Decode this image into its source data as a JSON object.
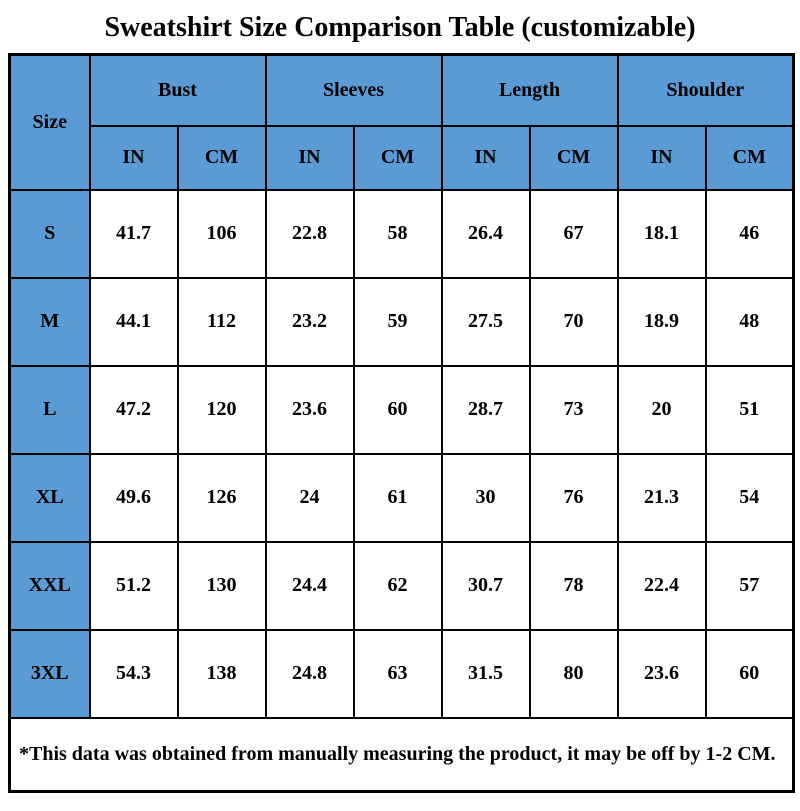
{
  "title": "Sweatshirt Size Comparison Table (customizable)",
  "table": {
    "size_header": "Size",
    "groups": [
      {
        "label": "Bust"
      },
      {
        "label": "Sleeves"
      },
      {
        "label": "Length"
      },
      {
        "label": "Shoulder"
      }
    ],
    "unit_headers": [
      "IN",
      "CM"
    ],
    "rows": [
      {
        "size": "S",
        "values": [
          "41.7",
          "106",
          "22.8",
          "58",
          "26.4",
          "67",
          "18.1",
          "46"
        ]
      },
      {
        "size": "M",
        "values": [
          "44.1",
          "112",
          "23.2",
          "59",
          "27.5",
          "70",
          "18.9",
          "48"
        ]
      },
      {
        "size": "L",
        "values": [
          "47.2",
          "120",
          "23.6",
          "60",
          "28.7",
          "73",
          "20",
          "51"
        ]
      },
      {
        "size": "XL",
        "values": [
          "49.6",
          "126",
          "24",
          "61",
          "30",
          "76",
          "21.3",
          "54"
        ]
      },
      {
        "size": "XXL",
        "values": [
          "51.2",
          "130",
          "24.4",
          "62",
          "30.7",
          "78",
          "22.4",
          "57"
        ]
      },
      {
        "size": "3XL",
        "values": [
          "54.3",
          "138",
          "24.8",
          "63",
          "31.5",
          "80",
          "23.6",
          "60"
        ]
      }
    ],
    "footnote": "*This data was obtained from manually measuring the product, it may be off by 1-2 CM."
  },
  "colors": {
    "header_blue": "#5b9bd5",
    "border": "#000000",
    "background": "#ffffff",
    "text": "#000000"
  },
  "chart_data": {
    "type": "table",
    "title": "Sweatshirt Size Comparison Table (customizable)",
    "column_groups": [
      "Bust",
      "Sleeves",
      "Length",
      "Shoulder"
    ],
    "columns": [
      "Size",
      "Bust IN",
      "Bust CM",
      "Sleeves IN",
      "Sleeves CM",
      "Length IN",
      "Length CM",
      "Shoulder IN",
      "Shoulder CM"
    ],
    "rows": [
      [
        "S",
        41.7,
        106,
        22.8,
        58,
        26.4,
        67,
        18.1,
        46
      ],
      [
        "M",
        44.1,
        112,
        23.2,
        59,
        27.5,
        70,
        18.9,
        48
      ],
      [
        "L",
        47.2,
        120,
        23.6,
        60,
        28.7,
        73,
        20,
        51
      ],
      [
        "XL",
        49.6,
        126,
        24,
        61,
        30,
        76,
        21.3,
        54
      ],
      [
        "XXL",
        51.2,
        130,
        24.4,
        62,
        30.7,
        78,
        22.4,
        57
      ],
      [
        "3XL",
        54.3,
        138,
        24.8,
        63,
        31.5,
        80,
        23.6,
        60
      ]
    ],
    "footnote": "*This data was obtained from manually measuring the product, it may be off by 1-2 CM."
  }
}
